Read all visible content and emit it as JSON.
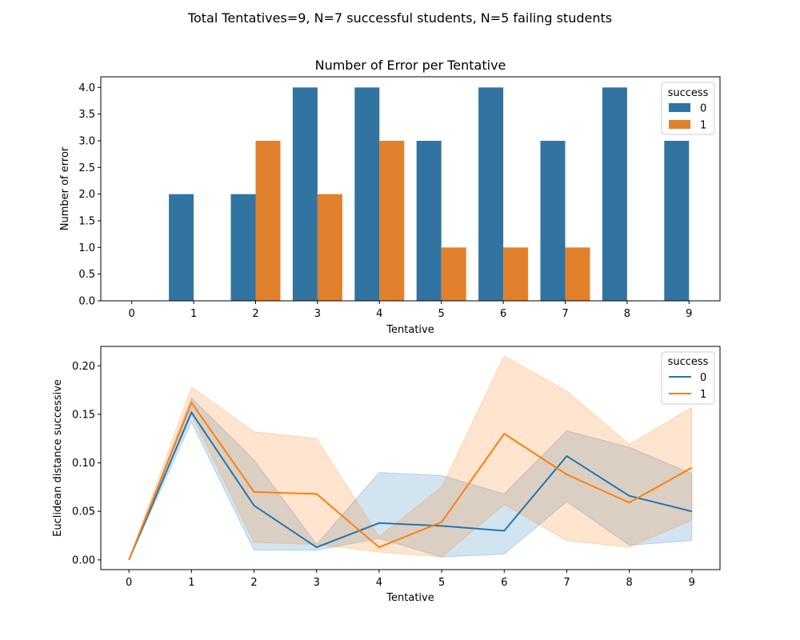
{
  "figure": {
    "suptitle": "Total Tentatives=9, N=7 successful students, N=5 failing students"
  },
  "colors": {
    "series_0": "#3274a1",
    "series_1": "#e1812c",
    "band_0": "#1f77b4",
    "band_1": "#ff7f0e",
    "line_0": "#1f77b4",
    "line_1": "#ff7f0e"
  },
  "chart_data": [
    {
      "type": "bar",
      "title": "Number of Error per Tentative",
      "xlabel": "Tentative",
      "ylabel": "Number of error",
      "categories": [
        "0",
        "1",
        "2",
        "3",
        "4",
        "5",
        "6",
        "7",
        "8",
        "9"
      ],
      "ylim": [
        0,
        4.0
      ],
      "yticks": [
        "0.0",
        "0.5",
        "1.0",
        "1.5",
        "2.0",
        "2.5",
        "3.0",
        "3.5",
        "4.0"
      ],
      "legend": {
        "title": "success",
        "placement": "top-right"
      },
      "series": [
        {
          "name": "0",
          "values": [
            0,
            2,
            2,
            4,
            4,
            3,
            4,
            3,
            4,
            3
          ]
        },
        {
          "name": "1",
          "values": [
            0,
            0,
            3,
            2,
            3,
            1,
            1,
            1,
            0,
            0
          ]
        }
      ]
    },
    {
      "type": "line",
      "title": "",
      "xlabel": "Tentative",
      "ylabel": "Euclidean distance successive",
      "x": [
        0,
        1,
        2,
        3,
        4,
        5,
        6,
        7,
        8,
        9
      ],
      "ylim": [
        -0.01,
        0.22
      ],
      "yticks": [
        "0.00",
        "0.05",
        "0.10",
        "0.15",
        "0.20"
      ],
      "legend": {
        "title": "success",
        "placement": "top-right"
      },
      "series": [
        {
          "name": "0",
          "values": [
            0.0,
            0.152,
            0.056,
            0.013,
            0.038,
            0.035,
            0.03,
            0.107,
            0.066,
            0.05
          ],
          "ci_low": [
            0.0,
            0.142,
            0.01,
            0.01,
            0.022,
            0.003,
            0.006,
            0.06,
            0.015,
            0.02
          ],
          "ci_high": [
            0.0,
            0.167,
            0.103,
            0.016,
            0.09,
            0.087,
            0.068,
            0.133,
            0.116,
            0.089
          ]
        },
        {
          "name": "1",
          "values": [
            0.0,
            0.162,
            0.07,
            0.068,
            0.013,
            0.039,
            0.13,
            0.088,
            0.059,
            0.095
          ],
          "ci_low": [
            0.0,
            0.15,
            0.018,
            0.016,
            0.008,
            0.003,
            0.057,
            0.02,
            0.013,
            0.041
          ],
          "ci_high": [
            0.0,
            0.178,
            0.132,
            0.125,
            0.024,
            0.075,
            0.21,
            0.174,
            0.119,
            0.157
          ]
        }
      ]
    }
  ]
}
